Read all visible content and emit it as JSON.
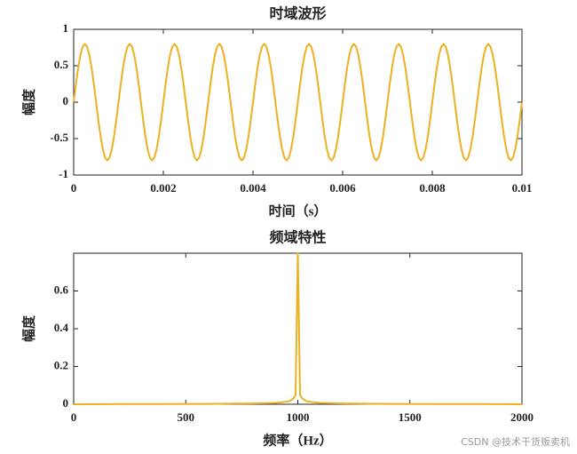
{
  "chart_data": [
    {
      "type": "line",
      "title": "时域波形",
      "xlabel": "时间（s）",
      "ylabel": "幅度",
      "color": "#EDB120",
      "xlim": [
        0,
        0.01
      ],
      "xticks": [
        0,
        0.002,
        0.004,
        0.006,
        0.008,
        0.01
      ],
      "ylim": [
        -1,
        1
      ],
      "yticks": [
        -1,
        -0.5,
        0,
        0.5,
        1
      ],
      "grid": false,
      "x": [
        0,
        5e-05,
        0.0001,
        0.00015,
        0.0002,
        0.00025,
        0.0003,
        0.00035,
        0.0004,
        0.00045,
        0.0005,
        0.00055,
        0.0006,
        0.00065,
        0.0007,
        0.00075,
        0.0008,
        0.00085,
        0.0009,
        0.00095,
        0.001,
        0.00105,
        0.0011,
        0.00115,
        0.0012,
        0.00125,
        0.0013,
        0.00135,
        0.0014,
        0.00145,
        0.0015,
        0.00155,
        0.0016,
        0.00165,
        0.0017,
        0.00175,
        0.0018,
        0.00185,
        0.0019,
        0.00195,
        0.002,
        0.00205,
        0.0021,
        0.00215,
        0.0022,
        0.00225,
        0.0023,
        0.00235,
        0.0024,
        0.00245,
        0.0025,
        0.00255,
        0.0026,
        0.00265,
        0.0027,
        0.00275,
        0.0028,
        0.00285,
        0.0029,
        0.00295,
        0.003,
        0.00305,
        0.0031,
        0.00315,
        0.0032,
        0.00325,
        0.0033,
        0.00335,
        0.0034,
        0.00345,
        0.0035,
        0.00355,
        0.0036,
        0.00365,
        0.0037,
        0.00375,
        0.0038,
        0.00385,
        0.0039,
        0.00395,
        0.004,
        0.00405,
        0.0041,
        0.00415,
        0.0042,
        0.00425,
        0.0043,
        0.00435,
        0.0044,
        0.00445,
        0.0045,
        0.00455,
        0.0046,
        0.00465,
        0.0047,
        0.00475,
        0.0048,
        0.00485,
        0.0049,
        0.00495,
        0.005,
        0.00505,
        0.0051,
        0.00515,
        0.0052,
        0.00525,
        0.0053,
        0.00535,
        0.0054,
        0.00545,
        0.0055,
        0.00555,
        0.0056,
        0.00565,
        0.0057,
        0.00575,
        0.0058,
        0.00585,
        0.0059,
        0.00595,
        0.006,
        0.00605,
        0.0061,
        0.00615,
        0.0062,
        0.00625,
        0.0063,
        0.00635,
        0.0064,
        0.00645,
        0.0065,
        0.00655,
        0.0066,
        0.00665,
        0.0067,
        0.00675,
        0.0068,
        0.00685,
        0.0069,
        0.00695,
        0.007,
        0.00705,
        0.0071,
        0.00715,
        0.0072,
        0.00725,
        0.0073,
        0.00735,
        0.0074,
        0.00745,
        0.0075,
        0.00755,
        0.0076,
        0.00765,
        0.0077,
        0.00775,
        0.0078,
        0.00785,
        0.0079,
        0.00795,
        0.008,
        0.00805,
        0.0081,
        0.00815,
        0.0082,
        0.00825,
        0.0083,
        0.00835,
        0.0084,
        0.00845,
        0.0085,
        0.00855,
        0.0086,
        0.00865,
        0.0087,
        0.00875,
        0.0088,
        0.00885,
        0.0089,
        0.00895,
        0.009,
        0.00905,
        0.0091,
        0.00915,
        0.0092,
        0.00925,
        0.0093,
        0.00935,
        0.0094,
        0.00945,
        0.0095,
        0.00955,
        0.0096,
        0.00965,
        0.0097,
        0.00975,
        0.0098,
        0.00985,
        0.0099,
        0.00995,
        0.01
      ],
      "values": [
        0,
        0.247,
        0.47,
        0.647,
        0.761,
        0.8,
        0.761,
        0.647,
        0.47,
        0.247,
        0,
        -0.247,
        -0.47,
        -0.647,
        -0.761,
        -0.8,
        -0.761,
        -0.647,
        -0.47,
        -0.247,
        0,
        0.247,
        0.47,
        0.647,
        0.761,
        0.8,
        0.761,
        0.647,
        0.47,
        0.247,
        0,
        -0.247,
        -0.47,
        -0.647,
        -0.761,
        -0.8,
        -0.761,
        -0.647,
        -0.47,
        -0.247,
        0,
        0.247,
        0.47,
        0.647,
        0.761,
        0.8,
        0.761,
        0.647,
        0.47,
        0.247,
        0,
        -0.247,
        -0.47,
        -0.647,
        -0.761,
        -0.8,
        -0.761,
        -0.647,
        -0.47,
        -0.247,
        0,
        0.247,
        0.47,
        0.647,
        0.761,
        0.8,
        0.761,
        0.647,
        0.47,
        0.247,
        0,
        -0.247,
        -0.47,
        -0.647,
        -0.761,
        -0.8,
        -0.761,
        -0.647,
        -0.47,
        -0.247,
        0,
        0.247,
        0.47,
        0.647,
        0.761,
        0.8,
        0.761,
        0.647,
        0.47,
        0.247,
        0,
        -0.247,
        -0.47,
        -0.647,
        -0.761,
        -0.8,
        -0.761,
        -0.647,
        -0.47,
        -0.247,
        0,
        0.247,
        0.47,
        0.647,
        0.761,
        0.8,
        0.761,
        0.647,
        0.47,
        0.247,
        0,
        -0.247,
        -0.47,
        -0.647,
        -0.761,
        -0.8,
        -0.761,
        -0.647,
        -0.47,
        -0.247,
        0,
        0.247,
        0.47,
        0.647,
        0.761,
        0.8,
        0.761,
        0.647,
        0.47,
        0.247,
        0,
        -0.247,
        -0.47,
        -0.647,
        -0.761,
        -0.8,
        -0.761,
        -0.647,
        -0.47,
        -0.247,
        0,
        0.247,
        0.47,
        0.647,
        0.761,
        0.8,
        0.761,
        0.647,
        0.47,
        0.247,
        0,
        -0.247,
        -0.47,
        -0.647,
        -0.761,
        -0.8,
        -0.761,
        -0.647,
        -0.47,
        -0.247,
        0,
        0.247,
        0.47,
        0.647,
        0.761,
        0.8,
        0.761,
        0.647,
        0.47,
        0.247,
        0,
        -0.247,
        -0.47,
        -0.647,
        -0.761,
        -0.8,
        -0.761,
        -0.647,
        -0.47,
        -0.247,
        0,
        0.247,
        0.47,
        0.647,
        0.761,
        0.8,
        0.761,
        0.647,
        0.47,
        0.247,
        0,
        -0.247,
        -0.47,
        -0.647,
        -0.761,
        -0.8,
        -0.761,
        -0.647,
        -0.47,
        -0.247,
        0
      ]
    },
    {
      "type": "line",
      "title": "频域特性",
      "xlabel": "频率（Hz）",
      "ylabel": "幅度",
      "color": "#EDB120",
      "xlim": [
        0,
        2000
      ],
      "xticks": [
        0,
        500,
        1000,
        1500,
        2000
      ],
      "ylim": [
        0,
        0.8
      ],
      "yticks": [
        0,
        0.2,
        0.4,
        0.6
      ],
      "grid": false,
      "x": [
        0,
        200,
        400,
        600,
        800,
        900,
        960,
        980,
        990,
        1000,
        1010,
        1020,
        1040,
        1100,
        1200,
        1400,
        1600,
        1800,
        2000
      ],
      "values": [
        0,
        0.001,
        0.001,
        0.002,
        0.004,
        0.007,
        0.015,
        0.03,
        0.05,
        0.8,
        0.05,
        0.03,
        0.015,
        0.007,
        0.004,
        0.002,
        0.001,
        0.001,
        0
      ]
    }
  ],
  "watermark": "CSDN @技术干货贩卖机"
}
